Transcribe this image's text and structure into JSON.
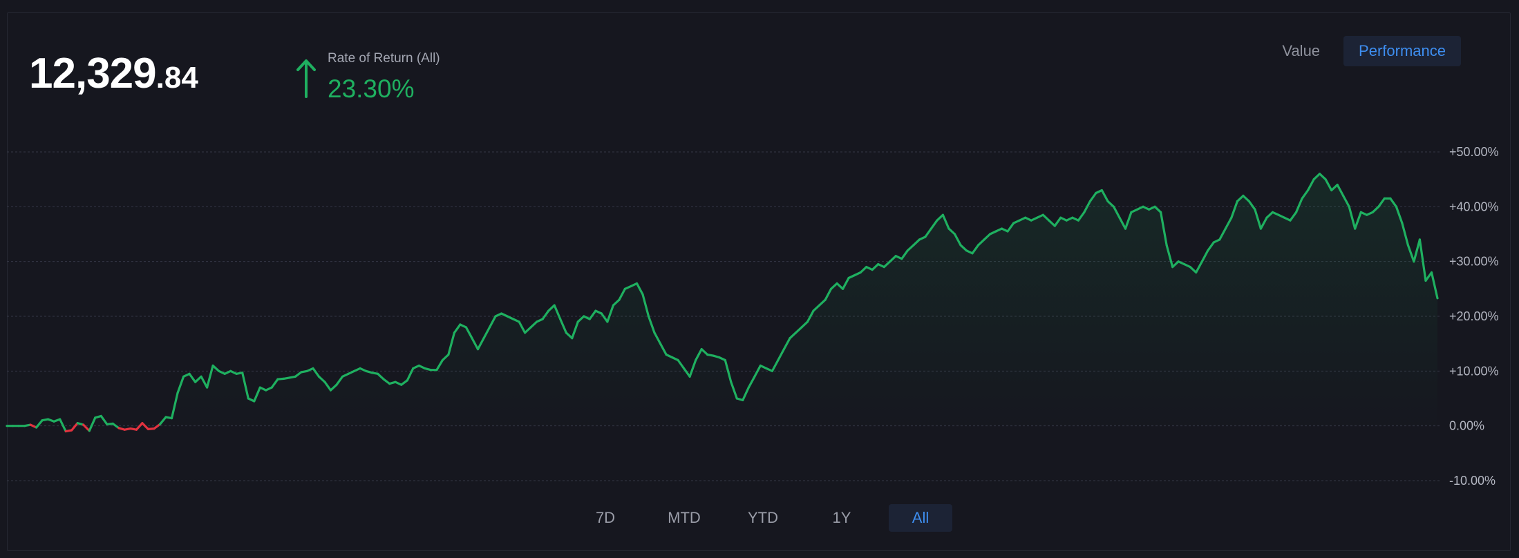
{
  "portfolio": {
    "value_int": "12,329",
    "value_dec": ".84"
  },
  "rate_of_return": {
    "label": "Rate of Return (All)",
    "value": "23.30%",
    "direction": "up",
    "color": "#1fb060"
  },
  "view_toggle": {
    "options": [
      "Value",
      "Performance"
    ],
    "selected": "Performance"
  },
  "range_selector": {
    "options": [
      "7D",
      "MTD",
      "YTD",
      "1Y",
      "All"
    ],
    "selected": "All"
  },
  "chart_data": {
    "type": "line",
    "ylabel": "",
    "xlabel": "",
    "y_unit": "%",
    "ylim": [
      -10,
      50
    ],
    "y_ticks": [
      {
        "value": 50,
        "label": "+50.00%"
      },
      {
        "value": 40,
        "label": "+40.00%"
      },
      {
        "value": 30,
        "label": "+30.00%"
      },
      {
        "value": 20,
        "label": "+20.00%"
      },
      {
        "value": 10,
        "label": "+10.00%"
      },
      {
        "value": 0,
        "label": "0.00%"
      },
      {
        "value": -10,
        "label": "-10.00%"
      }
    ],
    "grid": true,
    "positive_color": "#1fb060",
    "negative_color": "#e2323f",
    "series": [
      {
        "values": [
          0,
          0,
          0,
          0,
          0.2,
          -0.3,
          1,
          1.2,
          0.8,
          1.2,
          -1,
          -0.8,
          0.5,
          0.2,
          -0.9,
          1.5,
          1.8,
          0.3,
          0.4,
          -0.4,
          -0.7,
          -0.5,
          -0.7,
          0.5,
          -0.6,
          -0.5,
          0.3,
          1.6,
          1.4,
          6,
          9,
          9.5,
          8,
          9,
          7,
          11,
          10,
          9.5,
          10,
          9.5,
          9.7,
          5,
          4.5,
          7,
          6.5,
          7,
          8.5,
          8.6,
          8.8,
          9,
          9.8,
          10,
          10.5,
          9,
          8,
          6.5,
          7.5,
          9,
          9.5,
          10,
          10.5,
          10,
          9.7,
          9.5,
          8.5,
          7.7,
          8,
          7.5,
          8.3,
          10.5,
          11,
          10.5,
          10.2,
          10.2,
          12,
          13,
          17,
          18.5,
          18,
          16,
          14,
          16,
          18,
          20,
          20.5,
          20,
          19.5,
          19,
          17,
          18,
          19,
          19.5,
          21,
          22,
          19.5,
          17,
          16,
          19,
          20,
          19.5,
          21,
          20.5,
          19,
          22,
          23,
          25,
          25.5,
          26,
          24,
          20,
          17,
          15,
          13,
          12.5,
          12,
          10.5,
          9,
          12,
          14,
          13,
          12.8,
          12.5,
          12,
          8,
          5,
          4.7,
          7,
          9,
          11,
          10.5,
          10,
          12,
          14,
          16,
          17,
          18,
          19,
          21,
          22,
          23,
          25,
          26,
          25,
          27,
          27.5,
          28,
          29,
          28.5,
          29.5,
          29,
          30,
          31,
          30.5,
          32,
          33,
          34,
          34.5,
          36,
          37.5,
          38.5,
          36,
          35,
          33,
          32,
          31.5,
          33,
          34,
          35,
          35.5,
          36,
          35.5,
          37,
          37.5,
          38,
          37.5,
          38,
          38.5,
          37.5,
          36.5,
          38,
          37.5,
          38,
          37.5,
          39,
          41,
          42.5,
          43,
          41,
          40,
          38,
          36,
          39,
          39.5,
          40,
          39.5,
          40,
          39,
          33,
          29,
          30,
          29.5,
          29,
          28,
          30,
          32,
          33.5,
          34,
          36,
          38,
          41,
          42,
          41,
          39.5,
          36,
          38,
          39,
          38.5,
          38,
          37.5,
          39,
          41.5,
          43,
          45,
          46,
          45,
          43,
          44,
          42,
          40,
          36,
          39,
          38.5,
          39,
          40,
          41.5,
          41.5,
          40,
          37,
          33,
          30,
          34,
          26.5,
          28,
          23.3
        ]
      }
    ]
  }
}
